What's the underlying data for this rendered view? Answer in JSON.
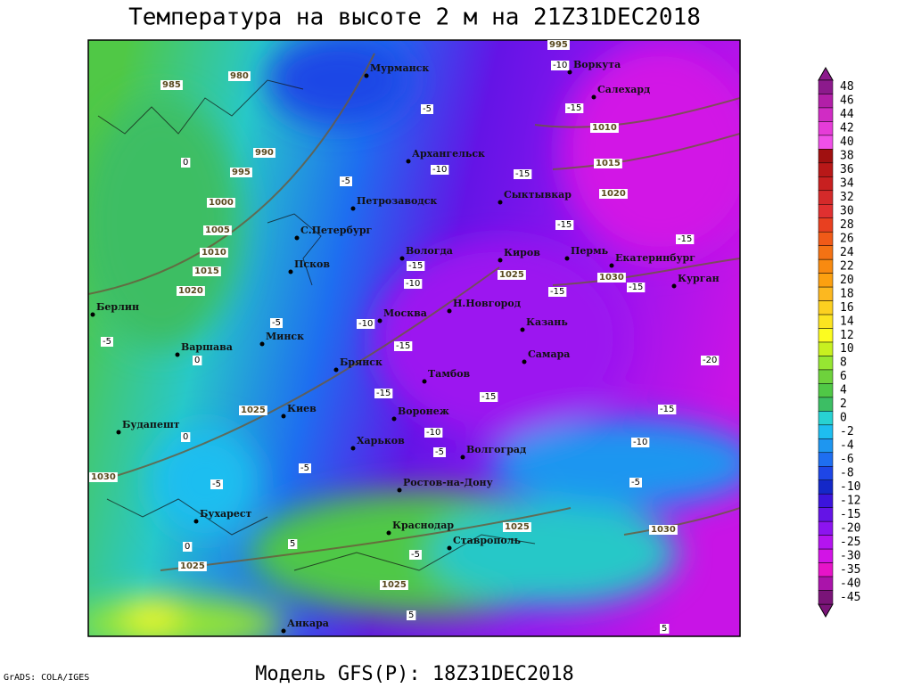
{
  "title": "Температура на высоте 2 м на 21Z31DEC2018",
  "footer": "Модель GFS(P): 18Z31DEC2018",
  "credit": "GrADS: COLA/IGES",
  "cities": [
    "Мурманск",
    "Воркута",
    "Салехард",
    "Архангельск",
    "Сыктывкар",
    "Петрозаводск",
    "С.Петербург",
    "Вологда",
    "Киров",
    "Пермь",
    "Екатеринбург",
    "Курган",
    "Псков",
    "Москва",
    "Н.Новгород",
    "Казань",
    "Берлин",
    "Минск",
    "Варшава",
    "Самара",
    "Брянск",
    "Тамбов",
    "Киев",
    "Воронеж",
    "Будапешт",
    "Харьков",
    "Волгоград",
    "Ростов-на-Дону",
    "Бухарест",
    "Краснодар",
    "Ставрополь",
    "Анкара"
  ],
  "isobar_labels": [
    985,
    980,
    990,
    995,
    1000,
    1005,
    1010,
    1015,
    1020,
    1025,
    1030,
    1025,
    1025,
    1025,
    1010,
    1015,
    1020,
    1030,
    1030,
    1025,
    995
  ],
  "isotherm_labels": [
    -10,
    -15,
    -5,
    -10,
    -15,
    -5,
    -15,
    -15,
    -15,
    -10,
    -15,
    -15,
    -10,
    -15,
    -20,
    -15,
    -15,
    -15,
    -10,
    -10,
    -5,
    -5,
    -5,
    -5,
    0,
    0,
    0,
    5,
    -5,
    5,
    5,
    0,
    -5,
    -5
  ],
  "colorbar": {
    "levels": [
      48,
      46,
      44,
      42,
      40,
      38,
      36,
      34,
      32,
      30,
      28,
      26,
      24,
      22,
      20,
      18,
      16,
      14,
      12,
      10,
      8,
      6,
      4,
      2,
      0,
      -2,
      -4,
      -6,
      -8,
      -10,
      -12,
      -15,
      -20,
      -25,
      -30,
      -35,
      -40,
      -45
    ],
    "colors": [
      "#8c1a8c",
      "#b21fa8",
      "#d02cc4",
      "#e63cd8",
      "#f050e8",
      "#a01010",
      "#b81818",
      "#c82020",
      "#d42a2a",
      "#e03030",
      "#e84020",
      "#f05a18",
      "#f47214",
      "#f88a10",
      "#fca010",
      "#fcb820",
      "#fcd020",
      "#fce420",
      "#fcfc20",
      "#c8f020",
      "#96e632",
      "#6ed23c",
      "#50c846",
      "#3cbe64",
      "#28d2d2",
      "#1ebef0",
      "#1e96f0",
      "#1e6ef0",
      "#1e46e6",
      "#1428c8",
      "#3c14dc",
      "#6414e6",
      "#8c14f0",
      "#b414f0",
      "#d214e6",
      "#e614c8",
      "#aa14aa",
      "#7a1478"
    ]
  }
}
